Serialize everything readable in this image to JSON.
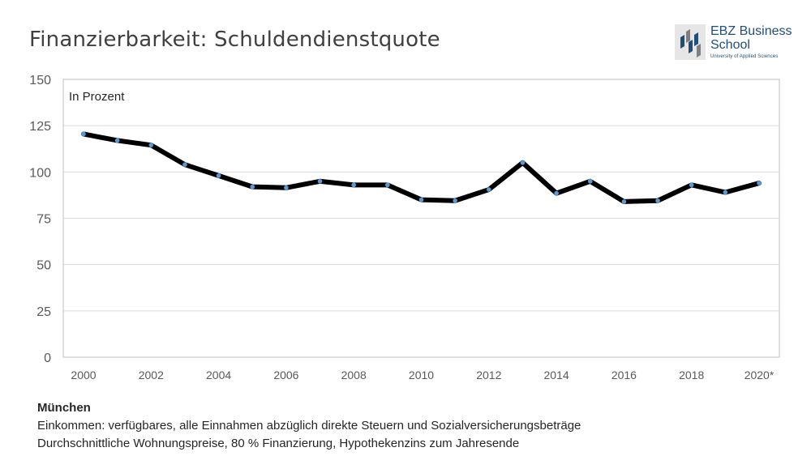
{
  "title": "Finanzierbarkeit: Schuldendienstquote",
  "logo": {
    "line1": "EBZ Business",
    "line2": "School",
    "subtitle": "University of Applied Sciences"
  },
  "chart_data": {
    "type": "line",
    "title": "Finanzierbarkeit: Schuldendienstquote",
    "annotation": "In Prozent",
    "xlabel": "",
    "ylabel": "",
    "ylim": [
      0,
      150
    ],
    "yticks": [
      0,
      25,
      50,
      75,
      100,
      125,
      150
    ],
    "grid": true,
    "x": [
      2000,
      2001,
      2002,
      2003,
      2004,
      2005,
      2006,
      2007,
      2008,
      2009,
      2010,
      2011,
      2012,
      2013,
      2014,
      2015,
      2016,
      2017,
      2018,
      2019,
      2020
    ],
    "xtick_labels": [
      "2000",
      "",
      "2002",
      "",
      "2004",
      "",
      "2006",
      "",
      "2008",
      "",
      "2010",
      "",
      "2012",
      "",
      "2014",
      "",
      "2016",
      "",
      "2018",
      "",
      "2020*"
    ],
    "series": [
      {
        "name": "München",
        "values": [
          120.5,
          117,
          114.5,
          104,
          98,
          92,
          91.5,
          95,
          93,
          93,
          85,
          84.5,
          90.5,
          105,
          88.5,
          95,
          84,
          84.5,
          93,
          89,
          94
        ]
      }
    ],
    "colors": {
      "line": "#000000",
      "marker": "#5b9bd5",
      "grid": "#d9d9d9",
      "axis": "#bfbfbf"
    }
  },
  "notes": {
    "city": "München",
    "line1": "Einkommen: verfügbares, alle Einnahmen abzüglich direkte Steuern und Sozialversicherungsbeträge",
    "line2": "Durchschnittliche Wohnungspreise, 80 % Finanzierung, Hypothekenzins zum Jahresende"
  }
}
